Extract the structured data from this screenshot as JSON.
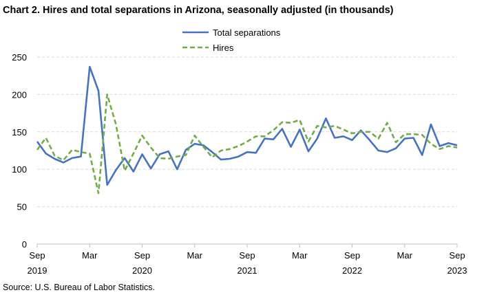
{
  "title": "Chart 2. Hires and total separations in Arizona, seasonally adjusted (in thousands)",
  "source": "Source: U.S. Bureau of Labor Statistics.",
  "chart_data": {
    "type": "line",
    "title": "Chart 2. Hires and total separations in Arizona, seasonally adjusted (in thousands)",
    "xlabel": "",
    "ylabel": "",
    "x": [
      "2019-09",
      "2019-10",
      "2019-11",
      "2019-12",
      "2020-01",
      "2020-02",
      "2020-03",
      "2020-04",
      "2020-05",
      "2020-06",
      "2020-07",
      "2020-08",
      "2020-09",
      "2020-10",
      "2020-11",
      "2020-12",
      "2021-01",
      "2021-02",
      "2021-03",
      "2021-04",
      "2021-05",
      "2021-06",
      "2021-07",
      "2021-08",
      "2021-09",
      "2021-10",
      "2021-11",
      "2021-12",
      "2022-01",
      "2022-02",
      "2022-03",
      "2022-04",
      "2022-05",
      "2022-06",
      "2022-07",
      "2022-08",
      "2022-09",
      "2022-10",
      "2022-11",
      "2022-12",
      "2023-01",
      "2023-02",
      "2023-03",
      "2023-04",
      "2023-05",
      "2023-06",
      "2023-07",
      "2023-08",
      "2023-09"
    ],
    "x_tick_labels": [
      {
        "index": 0,
        "month": "Sep",
        "year": "2019"
      },
      {
        "index": 6,
        "month": "Mar",
        "year": ""
      },
      {
        "index": 12,
        "month": "Sep",
        "year": "2020"
      },
      {
        "index": 18,
        "month": "Mar",
        "year": ""
      },
      {
        "index": 24,
        "month": "Sep",
        "year": "2021"
      },
      {
        "index": 30,
        "month": "Mar",
        "year": ""
      },
      {
        "index": 36,
        "month": "Sep",
        "year": "2022"
      },
      {
        "index": 42,
        "month": "Mar",
        "year": ""
      },
      {
        "index": 48,
        "month": "Sep",
        "year": "2023"
      }
    ],
    "ylim": [
      0,
      250
    ],
    "yticks": [
      0,
      50,
      100,
      150,
      200,
      250
    ],
    "grid": "horizontal dashed",
    "legend_position": "top-center",
    "series": [
      {
        "name": "Total separations",
        "color": "#4472c4",
        "style": "solid",
        "values": [
          137,
          121,
          114,
          109,
          115,
          117,
          237,
          205,
          79,
          99,
          115,
          97,
          120,
          101,
          120,
          124,
          100,
          126,
          134,
          132,
          123,
          113,
          114,
          117,
          123,
          122,
          141,
          140,
          154,
          130,
          153,
          124,
          141,
          168,
          142,
          144,
          139,
          152,
          139,
          125,
          123,
          128,
          141,
          142,
          119,
          160,
          131,
          135,
          132
        ]
      },
      {
        "name": "Hires",
        "color": "#70ad47",
        "style": "dashed",
        "values": [
          126,
          142,
          118,
          112,
          126,
          123,
          121,
          68,
          200,
          160,
          98,
          121,
          145,
          129,
          115,
          114,
          117,
          119,
          145,
          130,
          116,
          125,
          127,
          131,
          137,
          144,
          144,
          152,
          163,
          162,
          166,
          137,
          158,
          156,
          158,
          153,
          148,
          150,
          150,
          141,
          162,
          136,
          147,
          147,
          146,
          134,
          127,
          131,
          129
        ]
      }
    ]
  }
}
